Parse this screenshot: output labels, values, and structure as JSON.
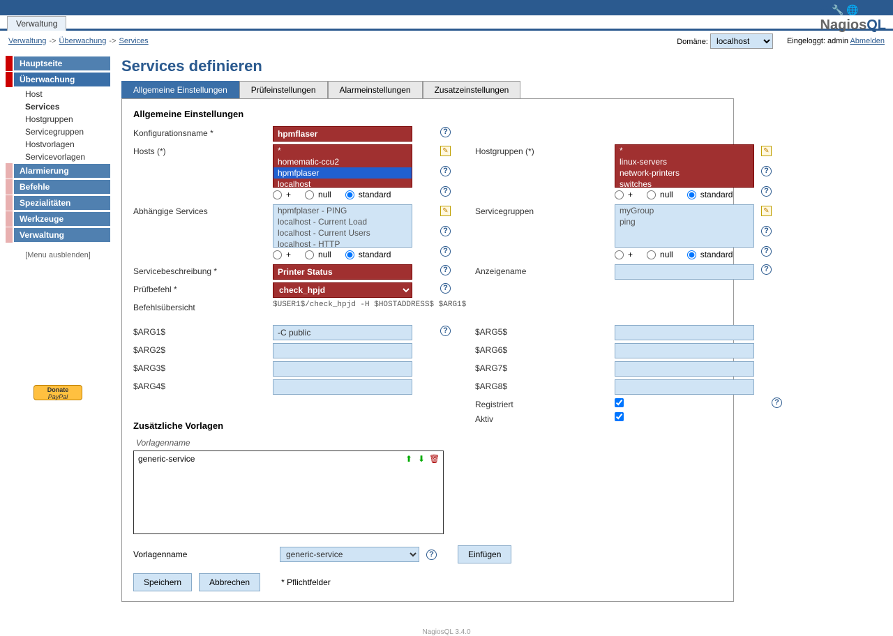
{
  "topTab": "Verwaltung",
  "breadcrumb": [
    "Verwaltung",
    "Überwachung",
    "Services"
  ],
  "domainLabel": "Domäne:",
  "domainValue": "localhost",
  "loggedIn": "Eingeloggt: admin",
  "logout": "Abmelden",
  "logo": {
    "prefix": "Nagios",
    "suffix": "QL"
  },
  "sidebar": {
    "main": [
      {
        "label": "Hauptseite",
        "bar": "red"
      },
      {
        "label": "Überwachung",
        "bar": "red",
        "active": true,
        "sub": [
          {
            "label": "Host"
          },
          {
            "label": "Services",
            "active": true
          },
          {
            "label": "Hostgruppen"
          },
          {
            "label": "Servicegruppen"
          },
          {
            "label": "Hostvorlagen"
          },
          {
            "label": "Servicevorlagen"
          }
        ]
      },
      {
        "label": "Alarmierung",
        "bar": "pink"
      },
      {
        "label": "Befehle",
        "bar": "pink"
      },
      {
        "label": "Spezialitäten",
        "bar": "pink"
      },
      {
        "label": "Werkzeuge",
        "bar": "pink"
      },
      {
        "label": "Verwaltung",
        "bar": "pink"
      }
    ],
    "toggle": "[Menu ausblenden]",
    "donate": "Donate PayPal"
  },
  "page": {
    "title": "Services definieren",
    "tabs": [
      "Allgemeine Einstellungen",
      "Prüfeinstellungen",
      "Alarmeinstellungen",
      "Zusatzeinstellungen"
    ],
    "section": "Allgemeine Einstellungen",
    "labels": {
      "configName": "Konfigurationsname *",
      "hosts": "Hosts (*)",
      "hostgroups": "Hostgruppen (*)",
      "depServices": "Abhängige Services",
      "serviceGroups": "Servicegruppen",
      "serviceDesc": "Servicebeschreibung *",
      "displayName": "Anzeigename",
      "checkCmd": "Prüfbefehl *",
      "cmdView": "Befehlsübersicht",
      "arg1": "$ARG1$",
      "arg2": "$ARG2$",
      "arg3": "$ARG3$",
      "arg4": "$ARG4$",
      "arg5": "$ARG5$",
      "arg6": "$ARG6$",
      "arg7": "$ARG7$",
      "arg8": "$ARG8$",
      "registered": "Registriert",
      "active": "Aktiv",
      "templates": "Zusätzliche Vorlagen",
      "templateName": "Vorlagenname",
      "templateNameField": "Vorlagenname",
      "required": "* Pflichtfelder"
    },
    "values": {
      "configName": "hpmflaser",
      "hosts": [
        "*",
        "homematic-ccu2",
        "hpmfplaser",
        "localhost"
      ],
      "hostsSelected": "hpmfplaser",
      "hostgroups": [
        "*",
        "linux-servers",
        "network-printers",
        "switches"
      ],
      "depServices": [
        "hpmfplaser - PING",
        "localhost - Current Load",
        "localhost - Current Users",
        "localhost - HTTP"
      ],
      "serviceGroups": [
        "myGroup",
        "ping"
      ],
      "serviceDesc": "Printer Status",
      "checkCmd": "check_hpjd",
      "cmdView": "$USER1$/check_hpjd -H $HOSTADDRESS$ $ARG1$",
      "arg1": "-C public",
      "templateEntry": "generic-service",
      "templateSelect": "generic-service"
    },
    "radioOptions": {
      "plus": "+",
      "null": "null",
      "standard": "standard"
    },
    "buttons": {
      "insert": "Einfügen",
      "save": "Speichern",
      "cancel": "Abbrechen"
    }
  },
  "footer": "NagiosQL 3.4.0"
}
